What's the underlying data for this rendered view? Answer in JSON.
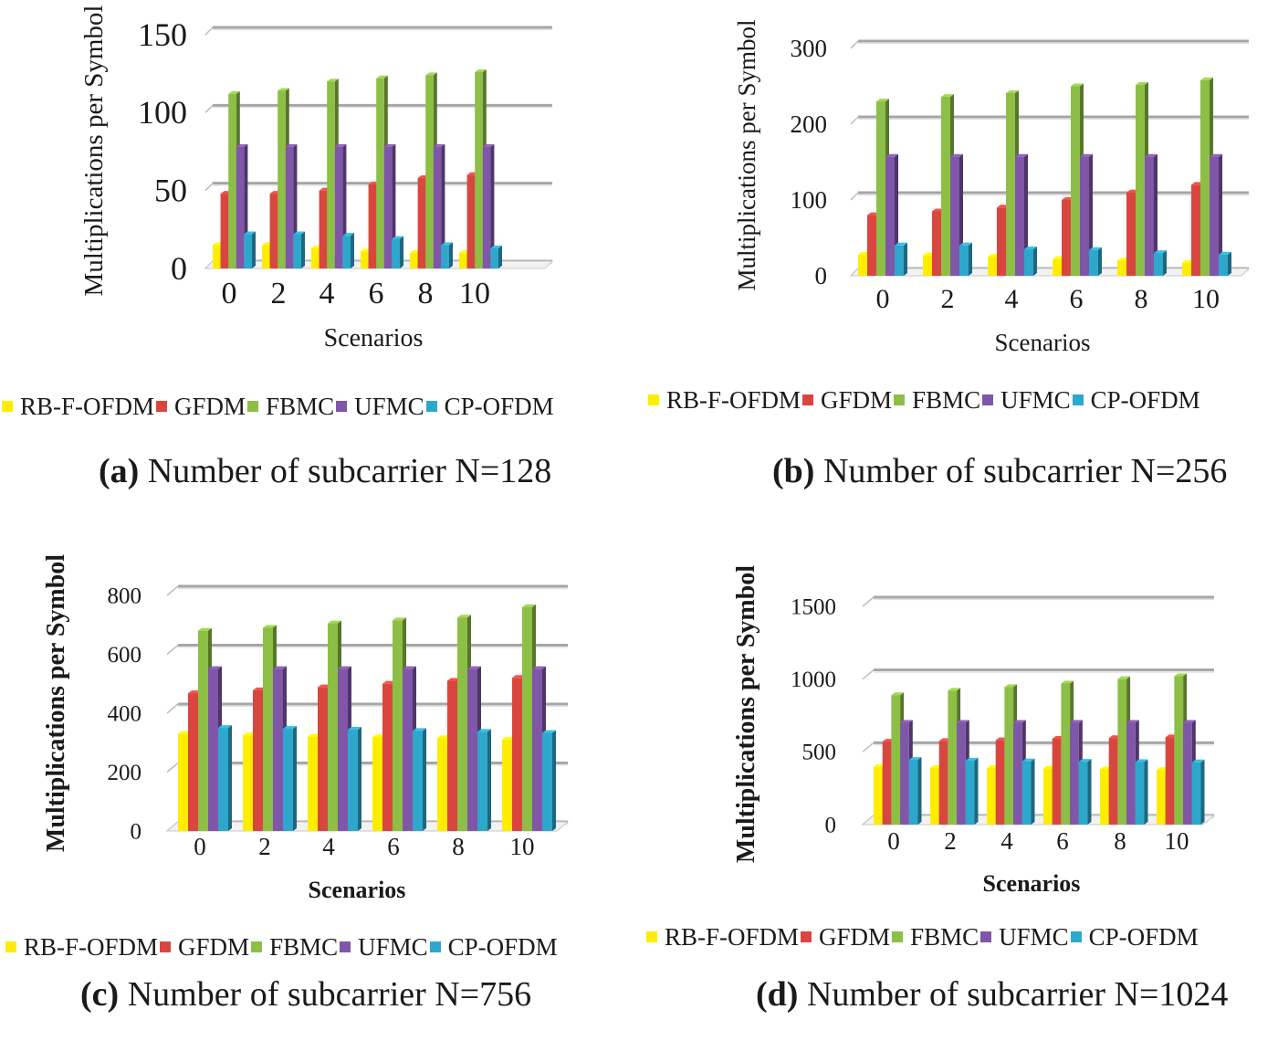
{
  "colors": {
    "rb_f_ofdm": "#FFED00",
    "gfdm": "#D9463F",
    "fbmc": "#8DBE45",
    "ufmc": "#7F56A8",
    "cp_ofdm": "#2EA7CC",
    "grid": "#a6a6a6"
  },
  "chart_data": [
    {
      "type": "bar",
      "title": "(a) Number of subcarrier N=128",
      "caption_letter": "(a)",
      "caption_text": "Number of subcarrier N=128",
      "xlabel": "Scenarios",
      "ylabel": "Multiplications per Symbol",
      "categories": [
        "0",
        "2",
        "4",
        "6",
        "8",
        "10"
      ],
      "yticks": [
        "0",
        "50",
        "100",
        "150"
      ],
      "ylim": [
        0,
        150
      ],
      "series": [
        {
          "name": "RB-F-OFDM",
          "values": [
            15,
            15,
            13,
            11,
            10,
            10
          ]
        },
        {
          "name": "GFDM",
          "values": [
            48,
            48,
            50,
            54,
            58,
            60
          ]
        },
        {
          "name": "FBMC",
          "values": [
            112,
            114,
            120,
            122,
            124,
            126
          ]
        },
        {
          "name": "UFMC",
          "values": [
            78,
            78,
            78,
            78,
            78,
            78
          ]
        },
        {
          "name": "CP-OFDM",
          "values": [
            22,
            22,
            21,
            19,
            15,
            13
          ]
        }
      ]
    },
    {
      "type": "bar",
      "title": "(b) Number of subcarrier N=256",
      "caption_letter": "(b)",
      "caption_text": "Number of subcarrier N=256",
      "xlabel": "Scenarios",
      "ylabel": "Multiplications per Symbol",
      "categories": [
        "0",
        "2",
        "4",
        "6",
        "8",
        "10"
      ],
      "yticks": [
        "0",
        "100",
        "200",
        "300"
      ],
      "ylim": [
        0,
        300
      ],
      "series": [
        {
          "name": "RB-F-OFDM",
          "values": [
            28,
            27,
            25,
            22,
            20,
            17
          ]
        },
        {
          "name": "GFDM",
          "values": [
            80,
            85,
            90,
            100,
            110,
            120
          ]
        },
        {
          "name": "FBMC",
          "values": [
            230,
            236,
            241,
            250,
            252,
            258
          ]
        },
        {
          "name": "UFMC",
          "values": [
            157,
            157,
            157,
            157,
            157,
            157
          ]
        },
        {
          "name": "CP-OFDM",
          "values": [
            40,
            40,
            35,
            34,
            30,
            28
          ]
        }
      ]
    },
    {
      "type": "bar",
      "title": "(c) Number of subcarrier N=756",
      "caption_letter": "(c)",
      "caption_text": "Number of subcarrier N=756",
      "xlabel": "Scenarios",
      "ylabel": "Multiplications per Symbol",
      "categories": [
        "0",
        "2",
        "4",
        "6",
        "8",
        "10"
      ],
      "yticks": [
        "0",
        "200",
        "400",
        "600",
        "800"
      ],
      "ylim": [
        0,
        800
      ],
      "series": [
        {
          "name": "RB-F-OFDM",
          "values": [
            330,
            325,
            320,
            318,
            315,
            310
          ]
        },
        {
          "name": "GFDM",
          "values": [
            468,
            478,
            488,
            500,
            510,
            520
          ]
        },
        {
          "name": "FBMC",
          "values": [
            680,
            690,
            705,
            715,
            725,
            760
          ]
        },
        {
          "name": "UFMC",
          "values": [
            550,
            550,
            550,
            550,
            550,
            550
          ]
        },
        {
          "name": "CP-OFDM",
          "values": [
            350,
            347,
            344,
            340,
            337,
            333
          ]
        }
      ]
    },
    {
      "type": "bar",
      "title": "(d) Number of subcarrier N=1024",
      "caption_letter": "(d)",
      "caption_text": "Number of subcarrier N=1024",
      "xlabel": "Scenarios",
      "ylabel": "Multiplications per Symbol",
      "categories": [
        "0",
        "2",
        "4",
        "6",
        "8",
        "10"
      ],
      "yticks": [
        "0",
        "500",
        "1000",
        "1500"
      ],
      "ylim": [
        0,
        1500
      ],
      "series": [
        {
          "name": "RB-F-OFDM",
          "values": [
            395,
            390,
            388,
            385,
            380,
            375
          ]
        },
        {
          "name": "GFDM",
          "values": [
            570,
            575,
            580,
            590,
            595,
            600
          ]
        },
        {
          "name": "FBMC",
          "values": [
            890,
            920,
            945,
            970,
            1000,
            1020
          ]
        },
        {
          "name": "UFMC",
          "values": [
            700,
            700,
            700,
            700,
            700,
            700
          ]
        },
        {
          "name": "CP-OFDM",
          "values": [
            445,
            440,
            435,
            432,
            430,
            428
          ]
        }
      ]
    }
  ]
}
